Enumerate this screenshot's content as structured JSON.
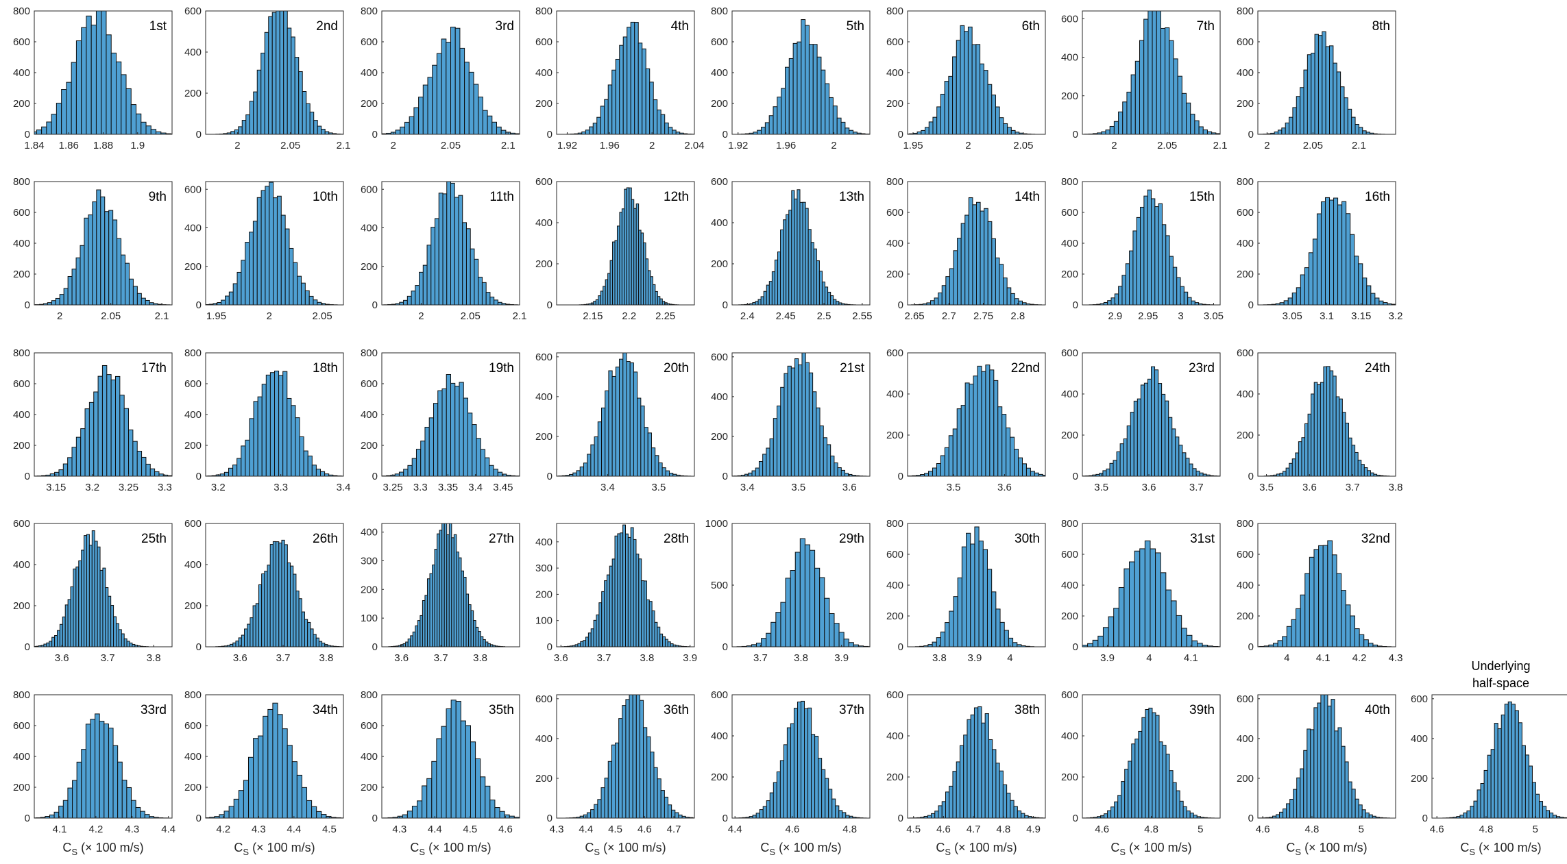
{
  "figure": {
    "colors": {
      "bar_fill": "#4fa0d3",
      "bar_edge": "#0d0d0d",
      "axes": "#262626"
    },
    "xlabel_main": "C",
    "xlabel_sub": "S",
    "xlabel_units": " (× 100 m/s)",
    "underlying_title": [
      "Underlying",
      "half-space"
    ]
  },
  "chart_data": [
    {
      "type": "bar",
      "label": "1st",
      "mean": 1.876,
      "sd": 0.013,
      "peak": 780,
      "bins": 36,
      "xlim": [
        1.84,
        1.92
      ],
      "xticks": [
        1.84,
        1.86,
        1.88,
        1.9
      ],
      "ylim": [
        0,
        800
      ],
      "yticks": [
        0,
        200,
        400,
        600,
        800
      ]
    },
    {
      "type": "bar",
      "label": "2nd",
      "mean": 2.04,
      "sd": 0.016,
      "peak": 620,
      "bins": 36,
      "xlim": [
        1.97,
        2.1
      ],
      "xticks": [
        2,
        2.05,
        2.1
      ],
      "ylim": [
        0,
        600
      ],
      "yticks": [
        0,
        200,
        400,
        600
      ]
    },
    {
      "type": "bar",
      "label": "3rd",
      "mean": 2.05,
      "sd": 0.018,
      "peak": 665,
      "bins": 36,
      "xlim": [
        1.99,
        2.11
      ],
      "xticks": [
        2,
        2.05,
        2.1
      ],
      "ylim": [
        0,
        800
      ],
      "yticks": [
        0,
        200,
        400,
        600,
        800
      ]
    },
    {
      "type": "bar",
      "label": "4th",
      "mean": 1.98,
      "sd": 0.016,
      "peak": 700,
      "bins": 36,
      "xlim": [
        1.91,
        2.04
      ],
      "xticks": [
        1.92,
        1.96,
        2,
        2.04
      ],
      "ylim": [
        0,
        800
      ],
      "yticks": [
        0,
        200,
        400,
        600,
        800
      ]
    },
    {
      "type": "bar",
      "label": "5th",
      "mean": 1.976,
      "sd": 0.015,
      "peak": 685,
      "bins": 36,
      "xlim": [
        1.915,
        2.03
      ],
      "xticks": [
        1.92,
        1.96,
        2
      ],
      "ylim": [
        0,
        800
      ],
      "yticks": [
        0,
        200,
        400,
        600,
        800
      ]
    },
    {
      "type": "bar",
      "label": "6th",
      "mean": 2.0,
      "sd": 0.016,
      "peak": 680,
      "bins": 36,
      "xlim": [
        1.945,
        2.07
      ],
      "xticks": [
        1.95,
        2,
        2.05
      ],
      "ylim": [
        0,
        800
      ],
      "yticks": [
        0,
        200,
        400,
        600,
        800
      ]
    },
    {
      "type": "bar",
      "label": "7th",
      "mean": 2.04,
      "sd": 0.018,
      "peak": 640,
      "bins": 36,
      "xlim": [
        1.97,
        2.1
      ],
      "xticks": [
        2,
        2.05,
        2.1
      ],
      "ylim": [
        0,
        640
      ],
      "yticks": [
        0,
        200,
        400,
        600
      ]
    },
    {
      "type": "bar",
      "label": "8th",
      "mean": 2.06,
      "sd": 0.018,
      "peak": 660,
      "bins": 36,
      "xlim": [
        1.99,
        2.14
      ],
      "xticks": [
        2,
        2.05,
        2.1
      ],
      "ylim": [
        0,
        800
      ],
      "yticks": [
        0,
        200,
        400,
        600,
        800
      ]
    },
    {
      "type": "bar",
      "label": "9th",
      "mean": 2.04,
      "sd": 0.018,
      "peak": 700,
      "bins": 36,
      "xlim": [
        1.975,
        2.11
      ],
      "xticks": [
        2,
        2.05,
        2.1
      ],
      "ylim": [
        0,
        800
      ],
      "yticks": [
        0,
        200,
        400,
        600,
        800
      ]
    },
    {
      "type": "bar",
      "label": "10th",
      "mean": 2.0,
      "sd": 0.017,
      "peak": 640,
      "bins": 36,
      "xlim": [
        1.94,
        2.07
      ],
      "xticks": [
        1.95,
        2,
        2.05
      ],
      "ylim": [
        0,
        640
      ],
      "yticks": [
        0,
        200,
        400,
        600
      ]
    },
    {
      "type": "bar",
      "label": "11th",
      "mean": 2.03,
      "sd": 0.018,
      "peak": 640,
      "bins": 36,
      "xlim": [
        1.96,
        2.1
      ],
      "xticks": [
        2,
        2.05,
        2.1
      ],
      "ylim": [
        0,
        640
      ],
      "yticks": [
        0,
        200,
        400,
        600
      ]
    },
    {
      "type": "bar",
      "label": "12th",
      "mean": 2.2,
      "sd": 0.018,
      "peak": 560,
      "bins": 44,
      "xlim": [
        2.1,
        2.29
      ],
      "xticks": [
        2.15,
        2.2,
        2.25
      ],
      "ylim": [
        0,
        600
      ],
      "yticks": [
        0,
        200,
        400,
        600
      ]
    },
    {
      "type": "bar",
      "label": "13th",
      "mean": 2.465,
      "sd": 0.02,
      "peak": 550,
      "bins": 44,
      "xlim": [
        2.38,
        2.56
      ],
      "xticks": [
        2.4,
        2.45,
        2.5,
        2.55
      ],
      "ylim": [
        0,
        600
      ],
      "yticks": [
        0,
        200,
        400,
        600
      ]
    },
    {
      "type": "bar",
      "label": "14th",
      "mean": 2.74,
      "sd": 0.025,
      "peak": 690,
      "bins": 36,
      "xlim": [
        2.64,
        2.84
      ],
      "xticks": [
        2.65,
        2.7,
        2.75,
        2.8
      ],
      "ylim": [
        0,
        800
      ],
      "yticks": [
        0,
        200,
        400,
        600,
        800
      ]
    },
    {
      "type": "bar",
      "label": "15th",
      "mean": 2.955,
      "sd": 0.025,
      "peak": 720,
      "bins": 36,
      "xlim": [
        2.85,
        3.06
      ],
      "xticks": [
        2.9,
        2.95,
        3,
        3.05
      ],
      "ylim": [
        0,
        800
      ],
      "yticks": [
        0,
        200,
        400,
        600,
        800
      ]
    },
    {
      "type": "bar",
      "label": "16th",
      "mean": 3.11,
      "sd": 0.027,
      "peak": 730,
      "bins": 36,
      "xlim": [
        3.0,
        3.2
      ],
      "xticks": [
        3.05,
        3.1,
        3.15,
        3.2
      ],
      "ylim": [
        0,
        800
      ],
      "yticks": [
        0,
        200,
        400,
        600,
        800
      ]
    },
    {
      "type": "bar",
      "label": "17th",
      "mean": 3.22,
      "sd": 0.027,
      "peak": 700,
      "bins": 36,
      "xlim": [
        3.12,
        3.31
      ],
      "xticks": [
        3.15,
        3.2,
        3.25,
        3.3
      ],
      "ylim": [
        0,
        800
      ],
      "yticks": [
        0,
        200,
        400,
        600,
        800
      ]
    },
    {
      "type": "bar",
      "label": "18th",
      "mean": 3.29,
      "sd": 0.03,
      "peak": 730,
      "bins": 36,
      "xlim": [
        3.18,
        3.4
      ],
      "xticks": [
        3.2,
        3.3,
        3.4
      ],
      "ylim": [
        0,
        800
      ],
      "yticks": [
        0,
        200,
        400,
        600,
        800
      ]
    },
    {
      "type": "bar",
      "label": "19th",
      "mean": 3.355,
      "sd": 0.035,
      "peak": 650,
      "bins": 36,
      "xlim": [
        3.23,
        3.48
      ],
      "xticks": [
        3.25,
        3.3,
        3.35,
        3.4,
        3.45
      ],
      "ylim": [
        0,
        800
      ],
      "yticks": [
        0,
        200,
        400,
        600,
        800
      ]
    },
    {
      "type": "bar",
      "label": "20th",
      "mean": 3.43,
      "sd": 0.035,
      "peak": 620,
      "bins": 40,
      "xlim": [
        3.3,
        3.57
      ],
      "xticks": [
        3.4,
        3.5
      ],
      "ylim": [
        0,
        620
      ],
      "yticks": [
        0,
        200,
        400,
        600
      ]
    },
    {
      "type": "bar",
      "label": "21st",
      "mean": 3.5,
      "sd": 0.035,
      "peak": 620,
      "bins": 40,
      "xlim": [
        3.37,
        3.64
      ],
      "xticks": [
        3.4,
        3.5,
        3.6
      ],
      "ylim": [
        0,
        620
      ],
      "yticks": [
        0,
        200,
        400,
        600
      ]
    },
    {
      "type": "bar",
      "label": "22nd",
      "mean": 3.555,
      "sd": 0.04,
      "peak": 560,
      "bins": 40,
      "xlim": [
        3.41,
        3.68
      ],
      "xticks": [
        3.5,
        3.6
      ],
      "ylim": [
        0,
        600
      ],
      "yticks": [
        0,
        200,
        400,
        600
      ]
    },
    {
      "type": "bar",
      "label": "23rd",
      "mean": 3.605,
      "sd": 0.04,
      "peak": 510,
      "bins": 44,
      "xlim": [
        3.46,
        3.75
      ],
      "xticks": [
        3.5,
        3.6,
        3.7
      ],
      "ylim": [
        0,
        600
      ],
      "yticks": [
        0,
        200,
        400,
        600
      ]
    },
    {
      "type": "bar",
      "label": "24th",
      "mean": 3.64,
      "sd": 0.04,
      "peak": 510,
      "bins": 44,
      "xlim": [
        3.48,
        3.8
      ],
      "xticks": [
        3.5,
        3.6,
        3.7,
        3.8
      ],
      "ylim": [
        0,
        600
      ],
      "yticks": [
        0,
        200,
        400,
        600
      ]
    },
    {
      "type": "bar",
      "label": "25th",
      "mean": 3.66,
      "sd": 0.035,
      "peak": 530,
      "bins": 48,
      "xlim": [
        3.54,
        3.84
      ],
      "xticks": [
        3.6,
        3.7,
        3.8
      ],
      "ylim": [
        0,
        600
      ],
      "yticks": [
        0,
        200,
        400,
        600
      ]
    },
    {
      "type": "bar",
      "label": "26th",
      "mean": 3.69,
      "sd": 0.04,
      "peak": 500,
      "bins": 48,
      "xlim": [
        3.52,
        3.84
      ],
      "xticks": [
        3.6,
        3.7,
        3.8
      ],
      "ylim": [
        0,
        600
      ],
      "yticks": [
        0,
        200,
        400,
        600
      ]
    },
    {
      "type": "bar",
      "label": "27th",
      "mean": 3.715,
      "sd": 0.04,
      "peak": 430,
      "bins": 52,
      "xlim": [
        3.55,
        3.9
      ],
      "xticks": [
        3.6,
        3.7,
        3.8
      ],
      "ylim": [
        0,
        430
      ],
      "yticks": [
        0,
        100,
        200,
        300,
        400
      ]
    },
    {
      "type": "bar",
      "label": "28th",
      "mean": 3.75,
      "sd": 0.04,
      "peak": 460,
      "bins": 52,
      "xlim": [
        3.59,
        3.91
      ],
      "xticks": [
        3.6,
        3.7,
        3.8,
        3.9
      ],
      "ylim": [
        0,
        470
      ],
      "yticks": [
        0,
        100,
        200,
        300,
        400
      ]
    },
    {
      "type": "bar",
      "label": "29th",
      "mean": 3.81,
      "sd": 0.045,
      "peak": 820,
      "bins": 30,
      "xlim": [
        3.63,
        3.97
      ],
      "xticks": [
        3.7,
        3.8,
        3.9
      ],
      "ylim": [
        0,
        1000
      ],
      "yticks": [
        0,
        500,
        1000
      ]
    },
    {
      "type": "bar",
      "label": "30th",
      "mean": 3.9,
      "sd": 0.045,
      "peak": 740,
      "bins": 30,
      "xlim": [
        3.71,
        4.1
      ],
      "xticks": [
        3.8,
        3.9,
        4
      ],
      "ylim": [
        0,
        800
      ],
      "yticks": [
        0,
        200,
        400,
        600,
        800
      ]
    },
    {
      "type": "bar",
      "label": "31st",
      "mean": 3.99,
      "sd": 0.05,
      "peak": 710,
      "bins": 32,
      "xlim": [
        3.84,
        4.17
      ],
      "xticks": [
        3.9,
        4,
        4.1
      ],
      "ylim": [
        0,
        800
      ],
      "yticks": [
        0,
        200,
        400,
        600,
        800
      ]
    },
    {
      "type": "bar",
      "label": "32nd",
      "mean": 4.1,
      "sd": 0.05,
      "peak": 700,
      "bins": 32,
      "xlim": [
        3.92,
        4.3
      ],
      "xticks": [
        4,
        4.1,
        4.2,
        4.3
      ],
      "ylim": [
        0,
        800
      ],
      "yticks": [
        0,
        200,
        400,
        600,
        800
      ]
    },
    {
      "type": "bar",
      "label": "33rd",
      "mean": 4.21,
      "sd": 0.05,
      "peak": 690,
      "bins": 32,
      "xlim": [
        4.03,
        4.41
      ],
      "xticks": [
        4.1,
        4.2,
        4.3,
        4.4
      ],
      "ylim": [
        0,
        800
      ],
      "yticks": [
        0,
        200,
        400,
        600,
        800
      ]
    },
    {
      "type": "bar",
      "label": "34th",
      "mean": 4.34,
      "sd": 0.055,
      "peak": 690,
      "bins": 32,
      "xlim": [
        4.15,
        4.54
      ],
      "xticks": [
        4.2,
        4.3,
        4.4,
        4.5
      ],
      "ylim": [
        0,
        800
      ],
      "yticks": [
        0,
        200,
        400,
        600,
        800
      ]
    },
    {
      "type": "bar",
      "label": "35th",
      "mean": 4.46,
      "sd": 0.055,
      "peak": 720,
      "bins": 32,
      "xlim": [
        4.25,
        4.64
      ],
      "xticks": [
        4.3,
        4.4,
        4.5,
        4.6
      ],
      "ylim": [
        0,
        800
      ],
      "yticks": [
        0,
        200,
        400,
        600,
        800
      ]
    },
    {
      "type": "bar",
      "label": "36th",
      "mean": 4.56,
      "sd": 0.06,
      "peak": 620,
      "bins": 40,
      "xlim": [
        4.3,
        4.77
      ],
      "xticks": [
        4.3,
        4.4,
        4.5,
        4.6,
        4.7
      ],
      "ylim": [
        0,
        620
      ],
      "yticks": [
        0,
        200,
        400,
        600
      ]
    },
    {
      "type": "bar",
      "label": "37th",
      "mean": 4.63,
      "sd": 0.06,
      "peak": 560,
      "bins": 40,
      "xlim": [
        4.39,
        4.87
      ],
      "xticks": [
        4.4,
        4.6,
        4.8
      ],
      "ylim": [
        0,
        600
      ],
      "yticks": [
        0,
        200,
        400,
        600
      ]
    },
    {
      "type": "bar",
      "label": "38th",
      "mean": 4.715,
      "sd": 0.06,
      "peak": 530,
      "bins": 40,
      "xlim": [
        4.48,
        4.94
      ],
      "xticks": [
        4.5,
        4.6,
        4.7,
        4.8,
        4.9
      ],
      "ylim": [
        0,
        600
      ],
      "yticks": [
        0,
        200,
        400,
        600
      ]
    },
    {
      "type": "bar",
      "label": "39th",
      "mean": 4.79,
      "sd": 0.07,
      "peak": 520,
      "bins": 40,
      "xlim": [
        4.52,
        5.08
      ],
      "xticks": [
        4.6,
        4.8,
        5
      ],
      "ylim": [
        0,
        600
      ],
      "yticks": [
        0,
        200,
        400,
        600
      ]
    },
    {
      "type": "bar",
      "label": "40th",
      "mean": 4.85,
      "sd": 0.07,
      "peak": 620,
      "bins": 40,
      "xlim": [
        4.58,
        5.14
      ],
      "xticks": [
        4.6,
        4.8,
        5
      ],
      "ylim": [
        0,
        620
      ],
      "yticks": [
        0,
        200,
        400,
        600
      ]
    },
    {
      "type": "bar",
      "label": "",
      "title": "Underlying half-space",
      "mean": 4.89,
      "sd": 0.07,
      "peak": 560,
      "bins": 40,
      "xlim": [
        4.58,
        5.14
      ],
      "xticks": [
        4.6,
        4.8,
        5
      ],
      "ylim": [
        0,
        620
      ],
      "yticks": [
        0,
        200,
        400,
        600
      ]
    }
  ]
}
